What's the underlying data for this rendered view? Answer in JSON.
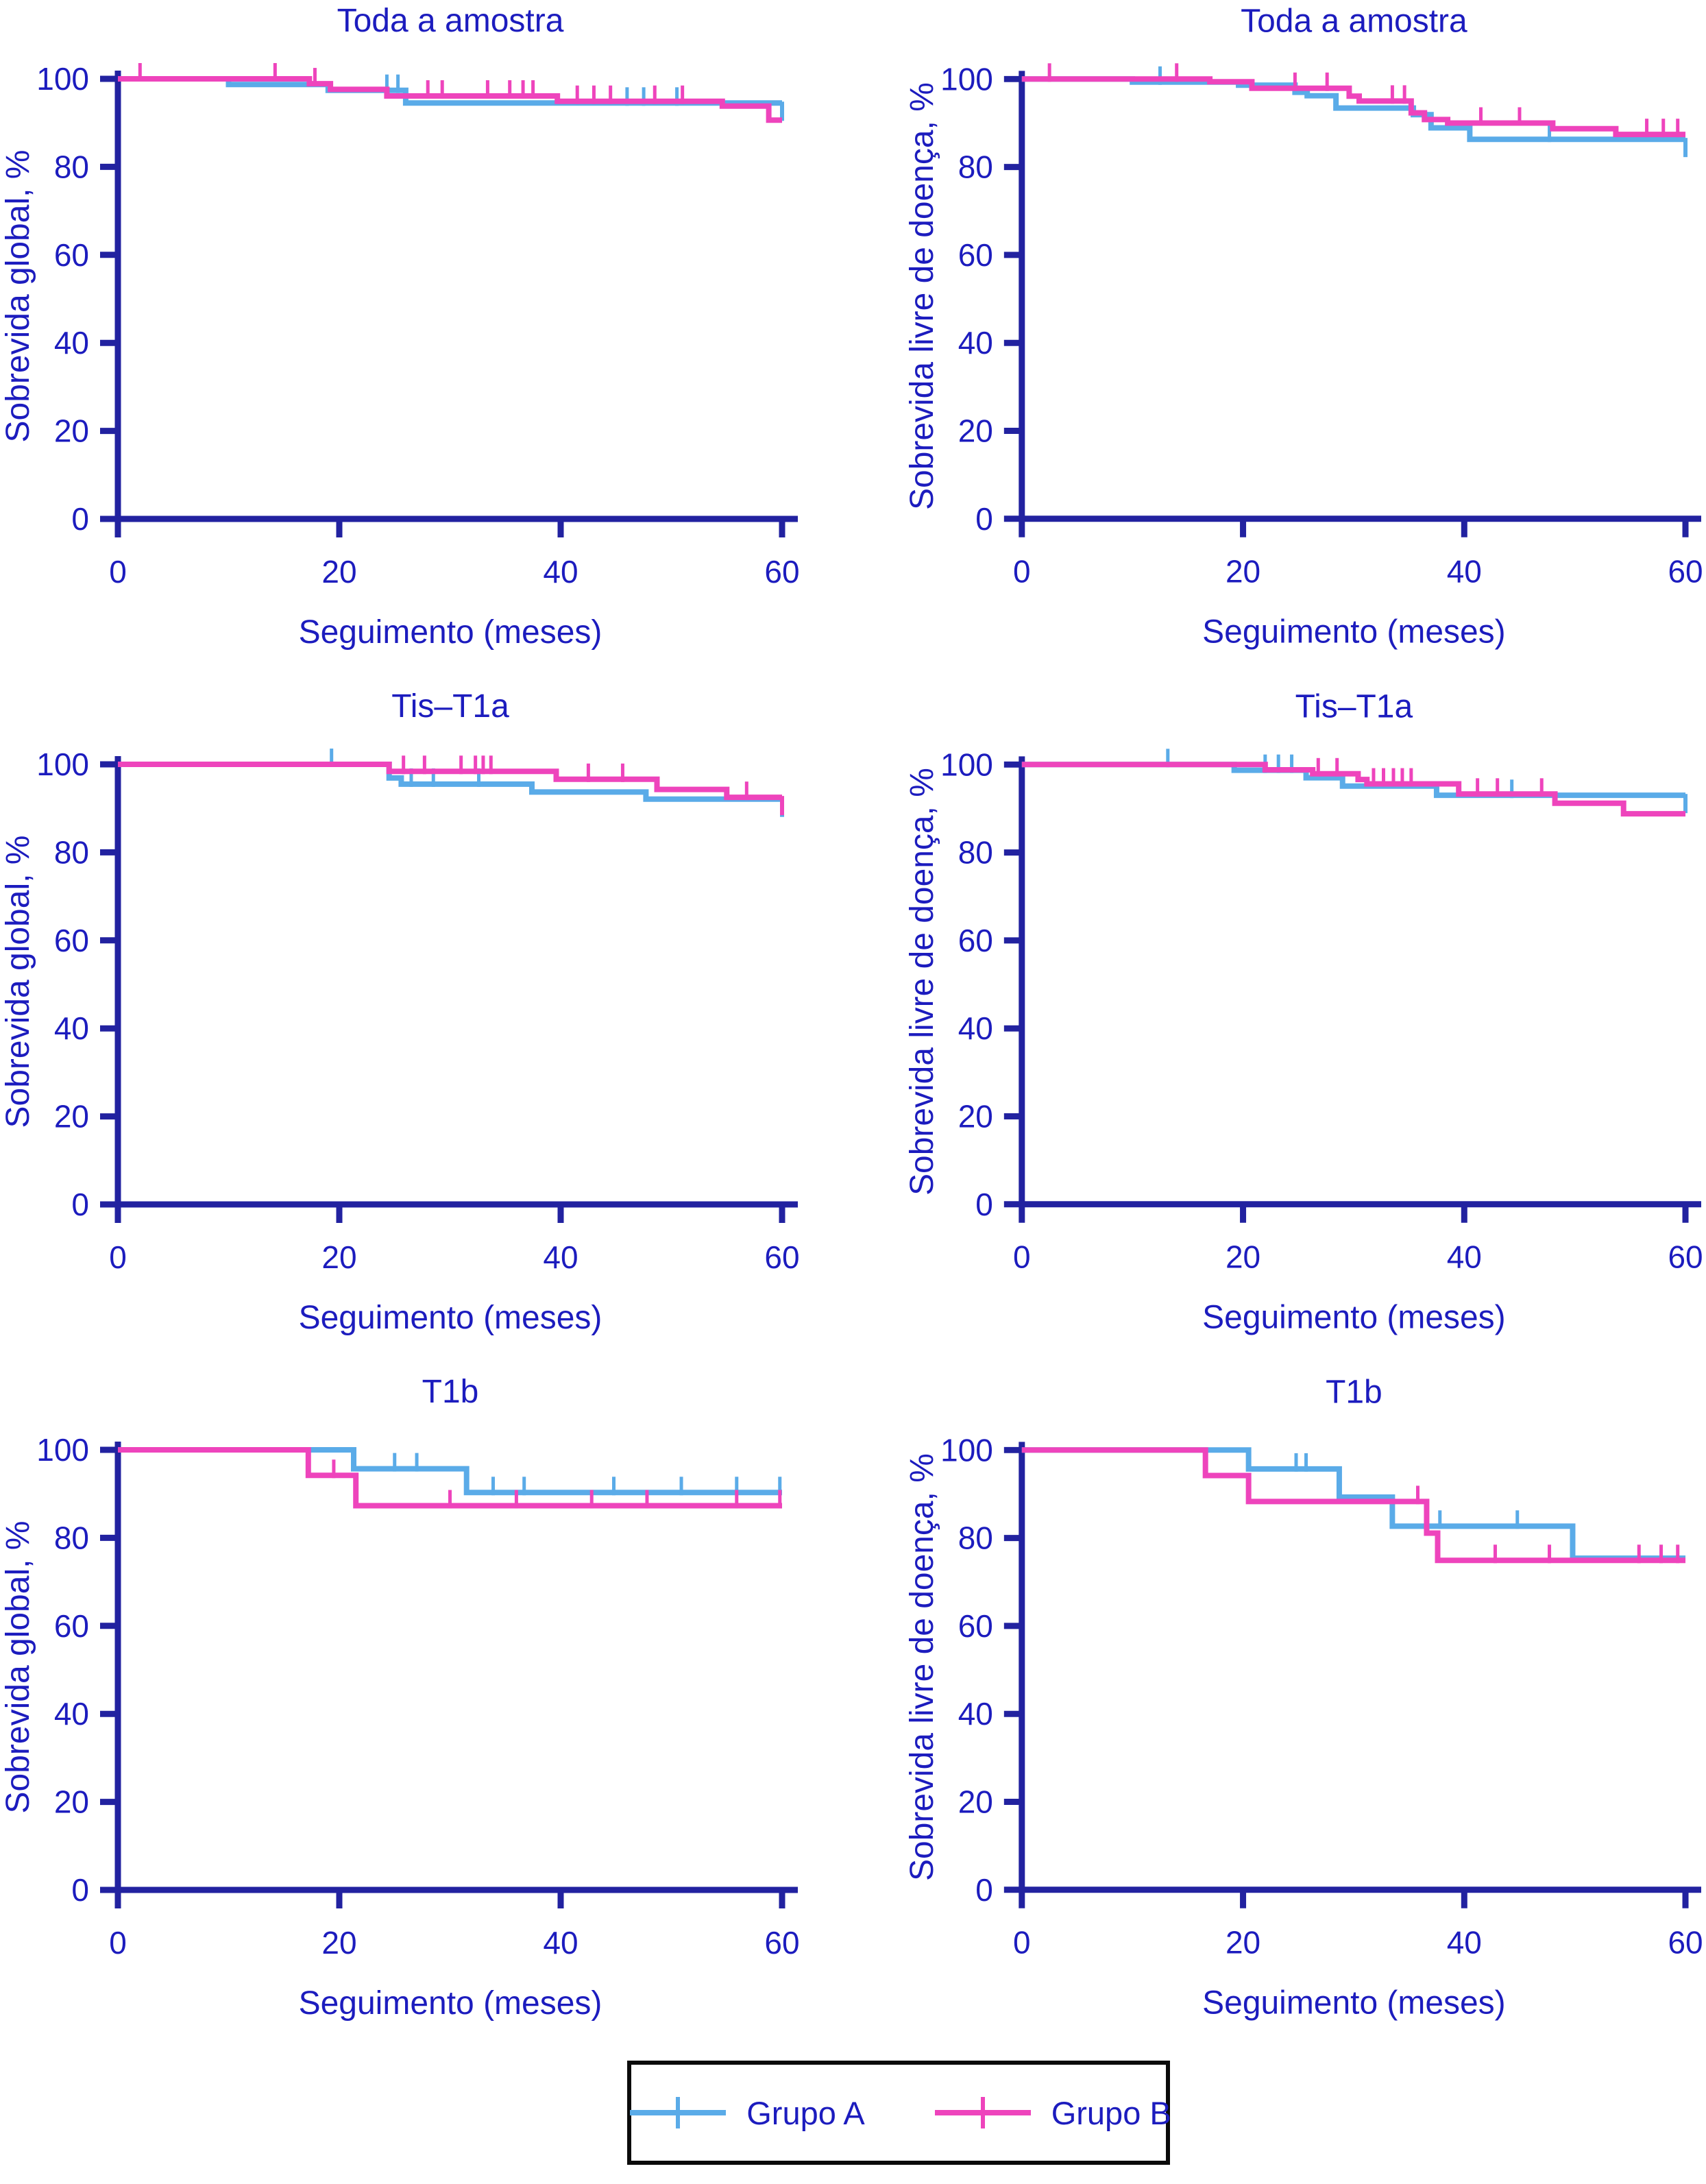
{
  "page": {
    "background": "#ffffff"
  },
  "colors": {
    "axis": "#2222a0",
    "text": "#1c1cbe",
    "grupo_a": "#5aabe8",
    "grupo_b": "#ee44bc",
    "legend_border": "#0b0b0b"
  },
  "legend": {
    "items": [
      {
        "label": "Grupo A",
        "color_key": "grupo_a"
      },
      {
        "label": "Grupo B",
        "color_key": "grupo_b"
      }
    ]
  },
  "chart_data": [
    {
      "type": "line",
      "title": "Toda a amostra",
      "xlabel": "Seguimento (meses)",
      "ylabel": "Sobrevida global, %",
      "xticks": [
        0,
        20,
        40,
        60
      ],
      "yticks": [
        0,
        20,
        40,
        60,
        80,
        100
      ],
      "xlim": [
        0,
        60
      ],
      "ylim": [
        0,
        100
      ],
      "grid": false,
      "legend_position": "bottom",
      "series": [
        {
          "name": "Grupo A",
          "color_key": "grupo_a",
          "steps": [
            [
              0,
              100
            ],
            [
              10,
              98.7
            ],
            [
              19,
              97.4
            ],
            [
              26,
              94.5
            ],
            [
              60,
              94.5
            ]
          ],
          "censors": [
            [
              24.3,
              97.4
            ],
            [
              25.3,
              97.4
            ],
            [
              46,
              94.5
            ],
            [
              47.5,
              94.5
            ],
            [
              50.5,
              94.5
            ]
          ],
          "endcap": [
            60,
            94.5
          ]
        },
        {
          "name": "Grupo B",
          "color_key": "grupo_b",
          "steps": [
            [
              0,
              100
            ],
            [
              17.3,
              98.9
            ],
            [
              19.2,
              97.6
            ],
            [
              24.3,
              96.1
            ],
            [
              39.7,
              94.9
            ],
            [
              54.6,
              93.8
            ],
            [
              58.8,
              90.6
            ],
            [
              60,
              90.6
            ]
          ],
          "censors": [
            [
              2,
              100
            ],
            [
              14.2,
              100
            ],
            [
              17.8,
              98.9
            ],
            [
              28,
              96.1
            ],
            [
              29.3,
              96.1
            ],
            [
              33.4,
              96.1
            ],
            [
              35.4,
              96.1
            ],
            [
              36.6,
              96.1
            ],
            [
              37.5,
              96.1
            ],
            [
              41.5,
              94.9
            ],
            [
              43,
              94.9
            ],
            [
              44.5,
              94.9
            ],
            [
              48.5,
              94.9
            ],
            [
              51,
              94.9
            ]
          ],
          "endcap": null
        }
      ]
    },
    {
      "type": "line",
      "title": "Toda a amostra",
      "xlabel": "Seguimento (meses)",
      "ylabel": "Sobrevida livre de doença, %",
      "xticks": [
        0,
        20,
        40,
        60
      ],
      "yticks": [
        0,
        20,
        40,
        60,
        80,
        100
      ],
      "xlim": [
        0,
        60
      ],
      "ylim": [
        0,
        100
      ],
      "grid": false,
      "legend_position": "bottom",
      "series": [
        {
          "name": "Grupo A",
          "color_key": "grupo_a",
          "steps": [
            [
              0,
              100
            ],
            [
              10,
              99.3
            ],
            [
              19.6,
              98.6
            ],
            [
              24.7,
              97
            ],
            [
              25.8,
              96.2
            ],
            [
              28.4,
              93.4
            ],
            [
              35.4,
              91.9
            ],
            [
              37,
              88.9
            ],
            [
              40.5,
              86.3
            ],
            [
              60,
              86.3
            ]
          ],
          "censors": [
            [
              12.5,
              99.3
            ],
            [
              47.7,
              86.3
            ]
          ],
          "endcap": [
            60,
            86.3
          ]
        },
        {
          "name": "Grupo B",
          "color_key": "grupo_b",
          "steps": [
            [
              0,
              100
            ],
            [
              17,
              99.4
            ],
            [
              20.8,
              97.9
            ],
            [
              29.6,
              96.1
            ],
            [
              30.5,
              95
            ],
            [
              35.2,
              92.3
            ],
            [
              36.4,
              90.8
            ],
            [
              38.5,
              90
            ],
            [
              48,
              88.7
            ],
            [
              53.7,
              87.4
            ],
            [
              60,
              87.4
            ]
          ],
          "censors": [
            [
              2.5,
              100
            ],
            [
              14,
              100
            ],
            [
              24.7,
              97.9
            ],
            [
              27.6,
              97.9
            ],
            [
              33.5,
              95
            ],
            [
              34.6,
              95
            ],
            [
              41.5,
              90
            ],
            [
              45,
              90
            ],
            [
              56.5,
              87.4
            ],
            [
              58,
              87.4
            ],
            [
              59.3,
              87.4
            ]
          ],
          "endcap": null
        }
      ]
    },
    {
      "type": "line",
      "title": "Tis–T1a",
      "xlabel": "Seguimento (meses)",
      "ylabel": "Sobrevida global, %",
      "xticks": [
        0,
        20,
        40,
        60
      ],
      "yticks": [
        0,
        20,
        40,
        60,
        80,
        100
      ],
      "xlim": [
        0,
        60
      ],
      "ylim": [
        0,
        100
      ],
      "grid": false,
      "legend_position": "bottom",
      "series": [
        {
          "name": "Grupo A",
          "color_key": "grupo_a",
          "steps": [
            [
              0,
              100
            ],
            [
              24.5,
              96.9
            ],
            [
              25.6,
              95.5
            ],
            [
              37.4,
              93.7
            ],
            [
              47.7,
              92.1
            ],
            [
              60,
              92.1
            ]
          ],
          "censors": [
            [
              19.3,
              100
            ],
            [
              26.5,
              95.5
            ],
            [
              28.5,
              95.5
            ],
            [
              32.6,
              95.5
            ]
          ],
          "endcap": [
            60,
            92.1
          ]
        },
        {
          "name": "Grupo B",
          "color_key": "grupo_b",
          "steps": [
            [
              0,
              100
            ],
            [
              24.5,
              98.4
            ],
            [
              39.6,
              96.6
            ],
            [
              48.7,
              94.3
            ],
            [
              55,
              92.5
            ],
            [
              60,
              92.5
            ]
          ],
          "censors": [
            [
              25.8,
              98.4
            ],
            [
              27.7,
              98.4
            ],
            [
              31,
              98.4
            ],
            [
              32.3,
              98.4
            ],
            [
              33,
              98.4
            ],
            [
              33.7,
              98.4
            ],
            [
              42.5,
              96.6
            ],
            [
              45.6,
              96.6
            ],
            [
              56.8,
              92.5
            ]
          ],
          "endcap": [
            60,
            92.5
          ]
        }
      ]
    },
    {
      "type": "line",
      "title": "Tis–T1a",
      "xlabel": "Seguimento (meses)",
      "ylabel": "Sobrevida livre de doença, %",
      "xticks": [
        0,
        20,
        40,
        60
      ],
      "yticks": [
        0,
        20,
        40,
        60,
        80,
        100
      ],
      "xlim": [
        0,
        60
      ],
      "ylim": [
        0,
        100
      ],
      "grid": false,
      "legend_position": "bottom",
      "series": [
        {
          "name": "Grupo A",
          "color_key": "grupo_a",
          "steps": [
            [
              0,
              100
            ],
            [
              19.2,
              98.7
            ],
            [
              25.7,
              97
            ],
            [
              29,
              95.1
            ],
            [
              37.5,
              93
            ],
            [
              60,
              93
            ]
          ],
          "censors": [
            [
              13.2,
              100
            ],
            [
              22,
              98.7
            ],
            [
              23.2,
              98.7
            ],
            [
              24.4,
              98.7
            ],
            [
              44.3,
              93
            ]
          ],
          "endcap": [
            60,
            93
          ]
        },
        {
          "name": "Grupo B",
          "color_key": "grupo_b",
          "steps": [
            [
              0,
              100
            ],
            [
              22,
              98.8
            ],
            [
              26.3,
              97.9
            ],
            [
              30.4,
              96.6
            ],
            [
              31.2,
              95.6
            ],
            [
              39.5,
              93.3
            ],
            [
              48.2,
              91.2
            ],
            [
              54.4,
              88.8
            ],
            [
              60,
              88.8
            ]
          ],
          "censors": [
            [
              26.8,
              97.9
            ],
            [
              28.5,
              97.9
            ],
            [
              31.8,
              95.6
            ],
            [
              32.7,
              95.6
            ],
            [
              33.6,
              95.6
            ],
            [
              34.4,
              95.6
            ],
            [
              35.2,
              95.6
            ],
            [
              41.2,
              93.3
            ],
            [
              43,
              93.3
            ],
            [
              47,
              93.3
            ]
          ],
          "endcap": null
        }
      ]
    },
    {
      "type": "line",
      "title": "T1b",
      "xlabel": "Seguimento (meses)",
      "ylabel": "Sobrevida global, %",
      "xticks": [
        0,
        20,
        40,
        60
      ],
      "yticks": [
        0,
        20,
        40,
        60,
        80,
        100
      ],
      "xlim": [
        0,
        60
      ],
      "ylim": [
        0,
        100
      ],
      "grid": false,
      "legend_position": "bottom",
      "series": [
        {
          "name": "Grupo A",
          "color_key": "grupo_a",
          "steps": [
            [
              0,
              100
            ],
            [
              21.3,
              95.7
            ],
            [
              31.5,
              90.3
            ],
            [
              60,
              90.3
            ]
          ],
          "censors": [
            [
              25,
              95.7
            ],
            [
              27,
              95.7
            ],
            [
              33.9,
              90.3
            ],
            [
              36.7,
              90.3
            ],
            [
              44.8,
              90.3
            ],
            [
              50.9,
              90.3
            ],
            [
              55.9,
              90.3
            ],
            [
              59.8,
              90.3
            ]
          ],
          "endcap": null
        },
        {
          "name": "Grupo B",
          "color_key": "grupo_b",
          "steps": [
            [
              0,
              100
            ],
            [
              17.2,
              94.2
            ],
            [
              21.5,
              87.3
            ],
            [
              60,
              87.3
            ]
          ],
          "censors": [
            [
              19.5,
              94.2
            ],
            [
              30,
              87.3
            ],
            [
              36,
              87.3
            ],
            [
              42.8,
              87.3
            ],
            [
              47.8,
              87.3
            ],
            [
              55.9,
              87.3
            ],
            [
              59.8,
              87.3
            ]
          ],
          "endcap": null
        }
      ]
    },
    {
      "type": "line",
      "title": "T1b",
      "xlabel": "Seguimento (meses)",
      "ylabel": "Sobrevida livre de doença, %",
      "xticks": [
        0,
        20,
        40,
        60
      ],
      "yticks": [
        0,
        20,
        40,
        60,
        80,
        100
      ],
      "xlim": [
        0,
        60
      ],
      "ylim": [
        0,
        100
      ],
      "grid": false,
      "legend_position": "bottom",
      "series": [
        {
          "name": "Grupo A",
          "color_key": "grupo_a",
          "steps": [
            [
              0,
              100
            ],
            [
              20.5,
              95.7
            ],
            [
              28.7,
              89.3
            ],
            [
              33.5,
              82.7
            ],
            [
              49.8,
              75.4
            ],
            [
              60,
              75.4
            ]
          ],
          "censors": [
            [
              24.8,
              95.7
            ],
            [
              25.7,
              95.7
            ],
            [
              37.8,
              82.7
            ],
            [
              44.8,
              82.7
            ]
          ],
          "endcap": null
        },
        {
          "name": "Grupo B",
          "color_key": "grupo_b",
          "steps": [
            [
              0,
              100
            ],
            [
              16.6,
              94.2
            ],
            [
              20.5,
              88.3
            ],
            [
              36.6,
              81.1
            ],
            [
              37.6,
              74.9
            ],
            [
              60,
              74.9
            ]
          ],
          "censors": [
            [
              35.8,
              88.3
            ],
            [
              42.8,
              74.9
            ],
            [
              47.7,
              74.9
            ],
            [
              55.8,
              74.9
            ],
            [
              57.8,
              74.9
            ],
            [
              59.3,
              74.9
            ]
          ],
          "endcap": null
        }
      ]
    }
  ]
}
